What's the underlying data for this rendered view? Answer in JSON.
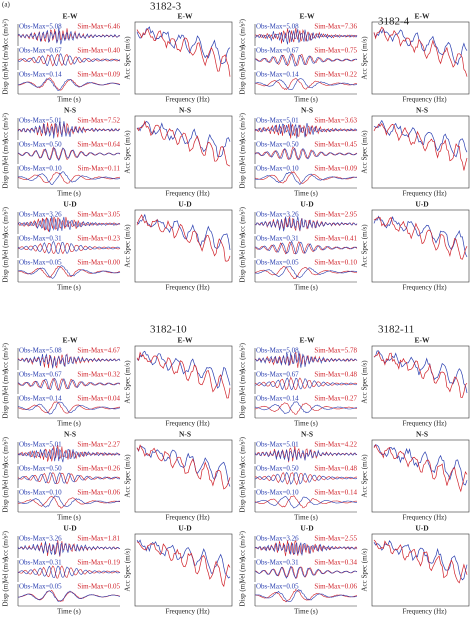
{
  "figure_label": "(a)",
  "labels": {
    "acc": "Acc (m/s²)",
    "vel": "Vel (m/s)",
    "disp": "Disp (m)",
    "time": "Time (s)",
    "freq": "Frequency (Hz)",
    "spec": "Acc Spec (m/s)"
  },
  "stations": [
    {
      "name": "3182-3",
      "components": [
        {
          "name": "E-W",
          "obs": [
            "Obs-Max=5.08",
            "Obs-Max=0.67",
            "Obs-Max=0.14"
          ],
          "sim": [
            "Sim-Max=6.46",
            "Sim-Max=0.40",
            "Sim-Max=0.09"
          ]
        },
        {
          "name": "N-S",
          "obs": [
            "Obs-Max=5.01",
            "Obs-Max=0.50",
            "Obs-Max=0.10"
          ],
          "sim": [
            "Sim-Max=7.52",
            "Sim-Max=0.64",
            "Sim-Max=0.11"
          ]
        },
        {
          "name": "U-D",
          "obs": [
            "Obs-Max=3.26",
            "Obs-Max=0.31",
            "Obs-Max=0.05"
          ],
          "sim": [
            "Sim-Max=3.05",
            "Sim-Max=0.23",
            "Sim-Max=0.00"
          ]
        }
      ]
    },
    {
      "name": "3182-4",
      "components": [
        {
          "name": "E-W",
          "obs": [
            "Obs-Max=5.08",
            "Obs-Max=0.67",
            "Obs-Max=0.14"
          ],
          "sim": [
            "Sim-Max=7.36",
            "Sim-Max=0.75",
            "Sim-Max=0.22"
          ]
        },
        {
          "name": "N-S",
          "obs": [
            "Obs-Max=5.01",
            "Obs-Max=0.50",
            "Obs-Max=0.10"
          ],
          "sim": [
            "Sim-Max=3.63",
            "Sim-Max=0.45",
            "Sim-Max=0.09"
          ]
        },
        {
          "name": "U-D",
          "obs": [
            "Obs-Max=3.26",
            "Obs-Max=0.31",
            "Obs-Max=0.05"
          ],
          "sim": [
            "Sim-Max=2.95",
            "Sim-Max=0.41",
            "Sim-Max=0.10"
          ]
        }
      ]
    },
    {
      "name": "3182-10",
      "components": [
        {
          "name": "E-W",
          "obs": [
            "Obs-Max=5.08",
            "Obs-Max=0.67",
            "Obs-Max=0.14"
          ],
          "sim": [
            "Sim-Max=4.67",
            "Sim-Max=0.32",
            "Sim-Max=0.04"
          ]
        },
        {
          "name": "N-S",
          "obs": [
            "Obs-Max=5.01",
            "Obs-Max=0.50",
            "Obs-Max=0.10"
          ],
          "sim": [
            "Sim-Max=2.27",
            "Sim-Max=0.26",
            "Sim-Max=0.06"
          ]
        },
        {
          "name": "U-D",
          "obs": [
            "Obs-Max=3.26",
            "Obs-Max=0.31",
            "Obs-Max=0.05"
          ],
          "sim": [
            "Sim-Max=1.81",
            "Sim-Max=0.19",
            "Sim-Max=0.05"
          ]
        }
      ]
    },
    {
      "name": "3182-11",
      "components": [
        {
          "name": "E-W",
          "obs": [
            "Obs-Max=5.08",
            "Obs-Max=0.67",
            "Obs-Max=0.14"
          ],
          "sim": [
            "Sim-Max=5.78",
            "Sim-Max=0.48",
            "Sim-Max=0.27"
          ]
        },
        {
          "name": "N-S",
          "obs": [
            "Obs-Max=5.01",
            "Obs-Max=0.50",
            "Obs-Max=0.10"
          ],
          "sim": [
            "Sim-Max=4.22",
            "Sim-Max=0.48",
            "Sim-Max=0.14"
          ]
        },
        {
          "name": "U-D",
          "obs": [
            "Obs-Max=3.26",
            "Obs-Max=0.31",
            "Obs-Max=0.05"
          ],
          "sim": [
            "Sim-Max=2.55",
            "Sim-Max=0.34",
            "Sim-Max=0.06"
          ]
        }
      ]
    }
  ]
}
